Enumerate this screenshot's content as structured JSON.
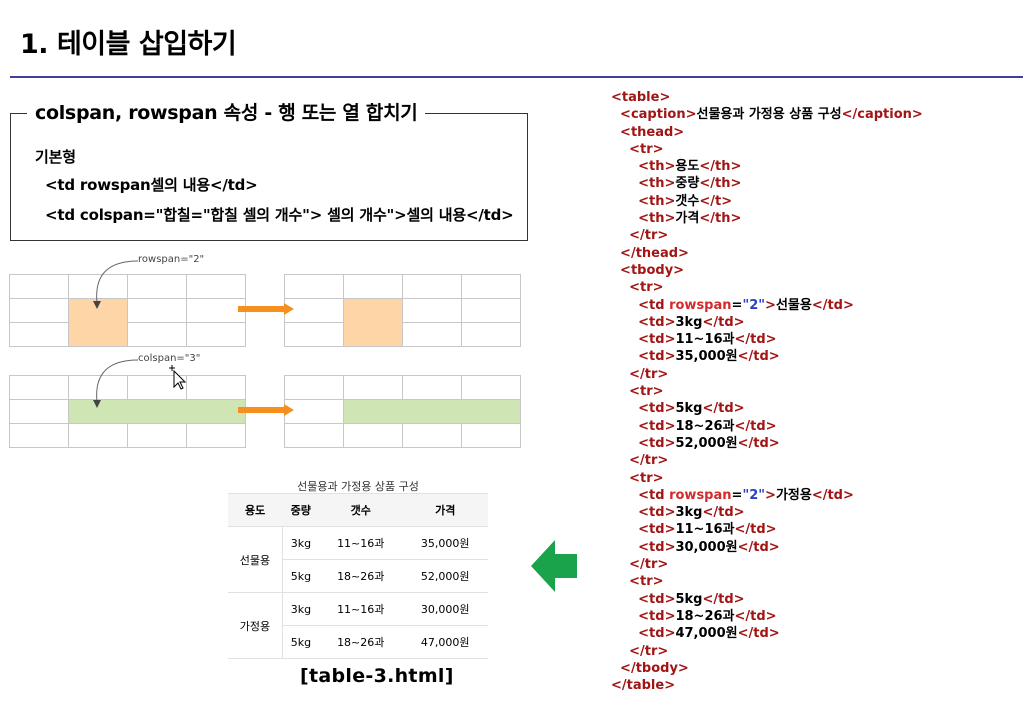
{
  "slide": {
    "title": "1. 테이블 삽입하기",
    "accent_color": "#3a3fa0"
  },
  "info_box": {
    "heading": "colspan, rowspan 속성 - 행 또는 열 합치기",
    "subhead": "기본형",
    "line1": "<td rowspan셀의 내용</td>",
    "line2": "<td colspan=\"합칠=\"합칠 셀의 개수\"> 셀의 개수\">셀의 내용</td>"
  },
  "diagrams": {
    "rowspan_label": "rowspan=\"2\"",
    "colspan_label": "colspan=\"3\"",
    "rowspan_color": "#fdd5a6",
    "colspan_color": "#cfe6b4",
    "arrow_color": "#f5901e"
  },
  "sample_table": {
    "caption": "선물용과 가정용 상품 구성",
    "headers": [
      "용도",
      "중량",
      "갯수",
      "가격"
    ],
    "groups": [
      {
        "name": "선물용",
        "rows": [
          [
            "3kg",
            "11~16과",
            "35,000원"
          ],
          [
            "5kg",
            "18~26과",
            "52,000원"
          ]
        ]
      },
      {
        "name": "가정용",
        "rows": [
          [
            "3kg",
            "11~16과",
            "30,000원"
          ],
          [
            "5kg",
            "18~26과",
            "47,000원"
          ]
        ]
      }
    ]
  },
  "file_label": "[table-3.html]",
  "green_arrow_color": "#1aa34a",
  "code": [
    [
      [
        "tag",
        "<table>"
      ]
    ],
    [
      [
        "tag",
        "  <caption>"
      ],
      [
        "txt",
        "선물용과 가정용 상품 구성"
      ],
      [
        "tag",
        "</caption>"
      ]
    ],
    [
      [
        "tag",
        "  <thead>"
      ]
    ],
    [
      [
        "tag",
        "    <tr>"
      ]
    ],
    [
      [
        "tag",
        "      <th>"
      ],
      [
        "txt",
        "용도"
      ],
      [
        "tag",
        "</th>"
      ]
    ],
    [
      [
        "tag",
        "      <th>"
      ],
      [
        "txt",
        "중량"
      ],
      [
        "tag",
        "</th>"
      ]
    ],
    [
      [
        "tag",
        "      <th>"
      ],
      [
        "txt",
        "갯수"
      ],
      [
        "tag",
        "</t>"
      ]
    ],
    [
      [
        "tag",
        "      <th>"
      ],
      [
        "txt",
        "가격"
      ],
      [
        "tag",
        "</th>"
      ]
    ],
    [
      [
        "tag",
        "    </tr>"
      ]
    ],
    [
      [
        "tag",
        "  </thead>"
      ]
    ],
    [
      [
        "tag",
        "  <tbody>"
      ]
    ],
    [
      [
        "tag",
        "    <tr>"
      ]
    ],
    [
      [
        "tag",
        "      <td "
      ],
      [
        "attr",
        "rowspan"
      ],
      [
        "txt",
        "="
      ],
      [
        "val",
        "\"2\""
      ],
      [
        "tag",
        ">"
      ],
      [
        "txt",
        "선물용"
      ],
      [
        "tag",
        "</td>"
      ]
    ],
    [
      [
        "tag",
        "      <td>"
      ],
      [
        "txt",
        "3kg"
      ],
      [
        "tag",
        "</td>"
      ]
    ],
    [
      [
        "tag",
        "      <td>"
      ],
      [
        "txt",
        "11~16과"
      ],
      [
        "tag",
        "</td>"
      ]
    ],
    [
      [
        "tag",
        "      <td>"
      ],
      [
        "txt",
        "35,000원"
      ],
      [
        "tag",
        "</td>"
      ]
    ],
    [
      [
        "tag",
        "    </tr>"
      ]
    ],
    [
      [
        "tag",
        "    <tr>"
      ]
    ],
    [
      [
        "tag",
        "      <td>"
      ],
      [
        "txt",
        "5kg"
      ],
      [
        "tag",
        "</td>"
      ]
    ],
    [
      [
        "tag",
        "      <td>"
      ],
      [
        "txt",
        "18~26과"
      ],
      [
        "tag",
        "</td>"
      ]
    ],
    [
      [
        "tag",
        "      <td>"
      ],
      [
        "txt",
        "52,000원"
      ],
      [
        "tag",
        "</td>"
      ]
    ],
    [
      [
        "tag",
        "    </tr>"
      ]
    ],
    [
      [
        "tag",
        "    <tr>"
      ]
    ],
    [
      [
        "tag",
        "      <td "
      ],
      [
        "attr",
        "rowspan"
      ],
      [
        "txt",
        "="
      ],
      [
        "val",
        "\"2\""
      ],
      [
        "tag",
        ">"
      ],
      [
        "txt",
        "가정용"
      ],
      [
        "tag",
        "</td>"
      ]
    ],
    [
      [
        "tag",
        "      <td>"
      ],
      [
        "txt",
        "3kg"
      ],
      [
        "tag",
        "</td>"
      ]
    ],
    [
      [
        "tag",
        "      <td>"
      ],
      [
        "txt",
        "11~16과"
      ],
      [
        "tag",
        "</td>"
      ]
    ],
    [
      [
        "tag",
        "      <td>"
      ],
      [
        "txt",
        "30,000원"
      ],
      [
        "tag",
        "</td>"
      ]
    ],
    [
      [
        "tag",
        "    </tr>"
      ]
    ],
    [
      [
        "tag",
        "    <tr>"
      ]
    ],
    [
      [
        "tag",
        "      <td>"
      ],
      [
        "txt",
        "5kg"
      ],
      [
        "tag",
        "</td>"
      ]
    ],
    [
      [
        "tag",
        "      <td>"
      ],
      [
        "txt",
        "18~26과"
      ],
      [
        "tag",
        "</td>"
      ]
    ],
    [
      [
        "tag",
        "      <td>"
      ],
      [
        "txt",
        "47,000원"
      ],
      [
        "tag",
        "</td>"
      ]
    ],
    [
      [
        "tag",
        "    </tr>"
      ]
    ],
    [
      [
        "tag",
        "  </tbody>"
      ]
    ],
    [
      [
        "tag",
        "</table>"
      ]
    ]
  ]
}
